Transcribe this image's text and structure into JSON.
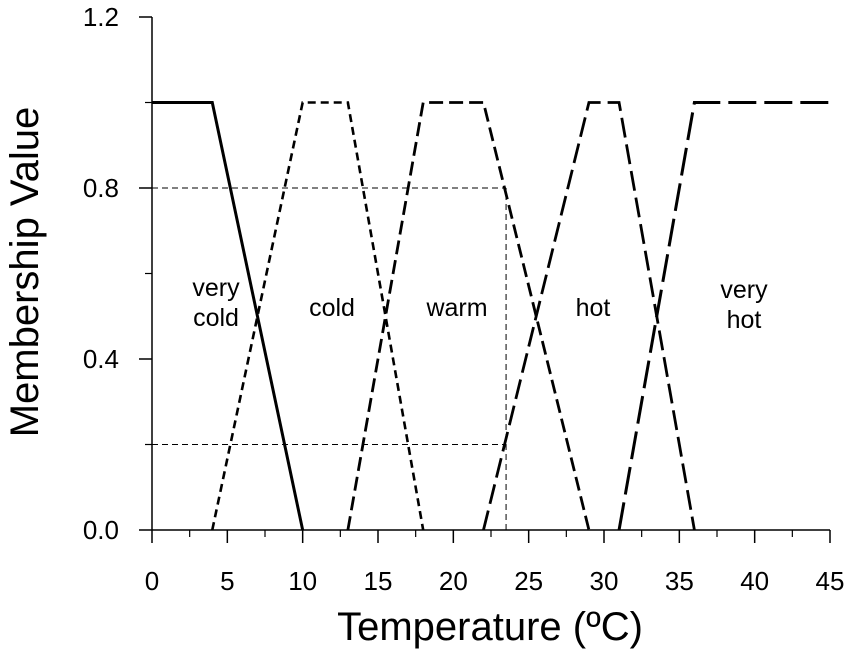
{
  "chart_data": {
    "type": "line",
    "title": "",
    "xlabel": "Temperature (ºC)",
    "ylabel": "Membership Value",
    "xlim": [
      0,
      45
    ],
    "ylim": [
      0,
      1.2
    ],
    "x_ticks": [
      0,
      5,
      10,
      15,
      20,
      25,
      30,
      35,
      40,
      45
    ],
    "x_tick_labels": [
      "0",
      "5",
      "10",
      "15",
      "20",
      "25",
      "30",
      "35",
      "40",
      "45"
    ],
    "y_ticks": [
      0.0,
      0.4,
      0.8,
      1.2
    ],
    "y_tick_labels": [
      "0.0",
      "0.4",
      "0.8",
      "1.2"
    ],
    "grid": false,
    "legend": "none",
    "series": [
      {
        "name": "very cold",
        "label_lines": [
          "very",
          "cold"
        ],
        "line_style": "solid",
        "x": [
          0,
          4,
          10
        ],
        "y": [
          1,
          1,
          0
        ]
      },
      {
        "name": "cold",
        "label_lines": [
          "cold"
        ],
        "line_style": "short-dash",
        "x": [
          4,
          10,
          13,
          18
        ],
        "y": [
          0,
          1,
          1,
          0
        ]
      },
      {
        "name": "warm",
        "label_lines": [
          "warm"
        ],
        "line_style": "medium-dash",
        "x": [
          13,
          18,
          22,
          29
        ],
        "y": [
          0,
          1,
          1,
          0
        ]
      },
      {
        "name": "hot",
        "label_lines": [
          "hot"
        ],
        "line_style": "dash",
        "x": [
          22,
          29,
          31,
          36
        ],
        "y": [
          0,
          1,
          1,
          0
        ]
      },
      {
        "name": "very hot",
        "label_lines": [
          "very",
          "hot"
        ],
        "line_style": "long-dash",
        "x": [
          31,
          36,
          45
        ],
        "y": [
          0,
          1,
          1
        ]
      }
    ],
    "reference_lines": [
      {
        "style": "thin-dash",
        "x": [
          0,
          23.5
        ],
        "y": [
          0.8,
          0.8
        ]
      },
      {
        "style": "thin-dash",
        "x": [
          0,
          23.5
        ],
        "y": [
          0.2,
          0.2
        ]
      },
      {
        "style": "thin-dash",
        "x": [
          23.5,
          23.5
        ],
        "y": [
          0,
          0.8
        ]
      }
    ]
  }
}
